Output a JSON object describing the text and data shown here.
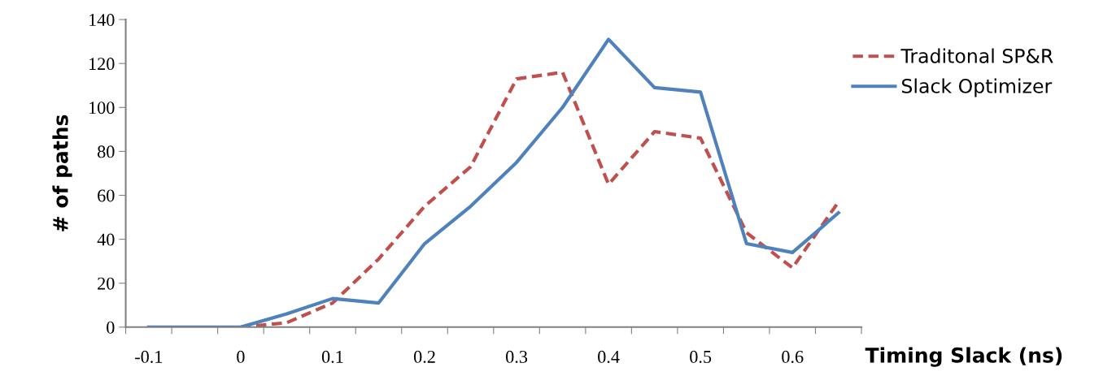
{
  "chart_data": {
    "type": "line",
    "xlabel": "Timing Slack (ns)",
    "ylabel": "# of paths",
    "categories": [
      "-0.1",
      null,
      "0",
      null,
      "0.1",
      null,
      "0.2",
      null,
      "0.3",
      null,
      "0.4",
      null,
      "0.5",
      null,
      "0.6",
      null
    ],
    "series": [
      {
        "name": "Traditonal SP&R",
        "color": "#c0504d",
        "line_style": "dashed",
        "values": [
          null,
          null,
          0,
          2,
          11,
          31,
          55,
          73,
          113,
          116,
          65,
          89,
          86,
          43,
          27,
          57
        ]
      },
      {
        "name": "Slack Optimizer",
        "color": "#4f81bd",
        "line_style": "solid",
        "values": [
          0,
          0,
          0,
          6,
          13,
          11,
          38,
          55,
          75,
          100,
          131,
          109,
          107,
          38,
          34,
          52
        ]
      }
    ],
    "ylim": [
      0,
      140
    ],
    "yticks": [
      0,
      20,
      40,
      60,
      80,
      100,
      120,
      140
    ],
    "grid": false,
    "legend": "right",
    "marker": "none"
  }
}
